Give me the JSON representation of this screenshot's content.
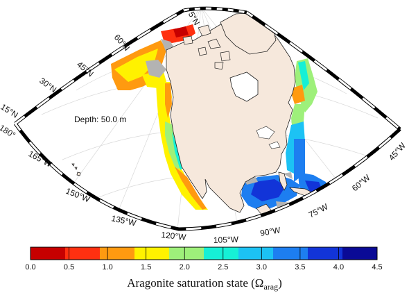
{
  "map": {
    "depth_label": "Depth: 50.0 m",
    "lat_labels": [
      "75°N",
      "60°N",
      "45°N",
      "30°N",
      "15°N"
    ],
    "lon_labels_left": [
      "180°",
      "165°W",
      "150°W",
      "135°W",
      "120°W",
      "105°W",
      "90°W",
      "75°W",
      "60°W",
      "45°W"
    ],
    "land_color": "#f6e8dc",
    "sea_ice_color": "#b3b3b3"
  },
  "colorbar": {
    "title_main": "Aragonite saturation state (Ω",
    "title_sub": "arag",
    "title_close": ")",
    "ticks": [
      "0.0",
      "0.5",
      "1.0",
      "1.5",
      "2.0",
      "2.5",
      "3.0",
      "3.5",
      "4.0",
      "4.5"
    ],
    "colors": [
      "#c60000",
      "#ff3010",
      "#ff9a10",
      "#fff200",
      "#9ef07a",
      "#16f0d6",
      "#1cc2f4",
      "#1d7ef0",
      "#1234d8",
      "#0a0a96"
    ]
  }
}
